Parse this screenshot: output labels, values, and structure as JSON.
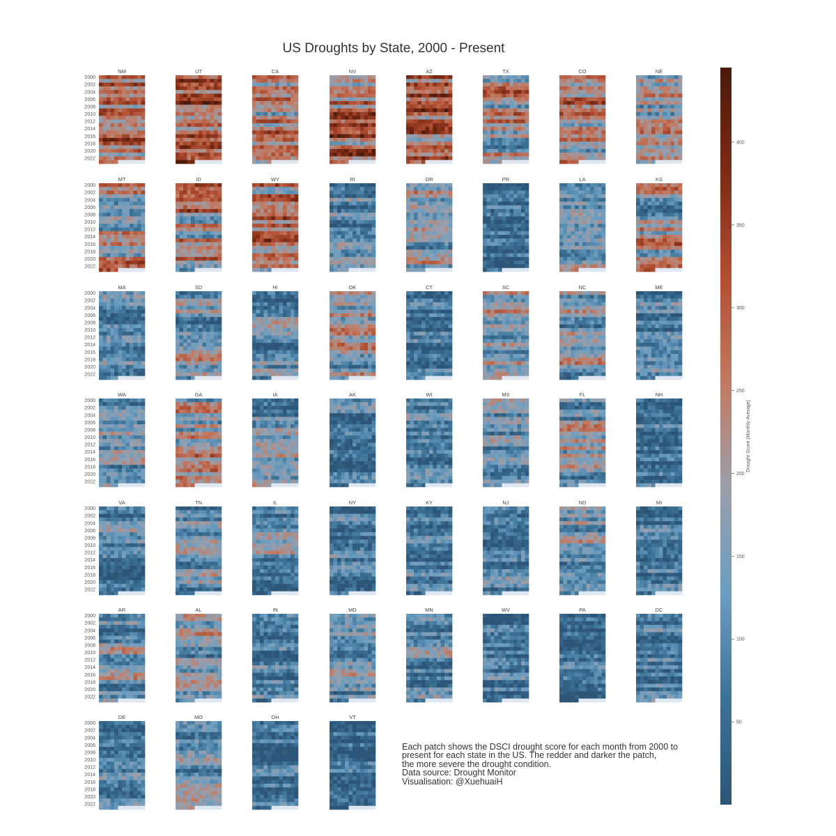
{
  "chart_data": {
    "type": "heatmap",
    "title": "US Droughts by State, 2000 - Present",
    "layout": "small multiples, one heatmap per state (rows = years, columns = months)",
    "row_labels": [
      "2000",
      "2002",
      "2004",
      "2006",
      "2008",
      "2010",
      "2012",
      "2014",
      "2016",
      "2018",
      "2020",
      "2022"
    ],
    "years": [
      2000,
      2023
    ],
    "months_per_row": 12,
    "states": [
      "NM",
      "UT",
      "CA",
      "NV",
      "AZ",
      "TX",
      "CO",
      "NE",
      "MT",
      "ID",
      "WY",
      "RI",
      "OR",
      "PR",
      "LA",
      "KS",
      "MA",
      "SD",
      "HI",
      "OK",
      "CT",
      "SC",
      "NC",
      "ME",
      "WA",
      "GA",
      "IA",
      "AK",
      "WI",
      "MS",
      "FL",
      "NH",
      "VA",
      "TN",
      "IL",
      "NY",
      "KY",
      "NJ",
      "ND",
      "MI",
      "AR",
      "AL",
      "IN",
      "MD",
      "MN",
      "WV",
      "PA",
      "DC",
      "DE",
      "MO",
      "OH",
      "VT"
    ],
    "approx_mean_level": [
      0.55,
      0.6,
      0.5,
      0.6,
      0.55,
      0.4,
      0.45,
      0.35,
      0.45,
      0.5,
      0.5,
      0.22,
      0.38,
      0.08,
      0.3,
      0.35,
      0.15,
      0.3,
      0.22,
      0.35,
      0.15,
      0.35,
      0.3,
      0.15,
      0.22,
      0.35,
      0.22,
      0.1,
      0.15,
      0.25,
      0.3,
      0.12,
      0.2,
      0.22,
      0.2,
      0.12,
      0.18,
      0.14,
      0.28,
      0.12,
      0.25,
      0.28,
      0.15,
      0.22,
      0.2,
      0.1,
      0.1,
      0.15,
      0.15,
      0.2,
      0.08,
      0.06
    ],
    "colorbar": {
      "label": "Drought Score (Monthly Average)",
      "range": [
        0,
        445
      ],
      "ticks": [
        50,
        100,
        150,
        200,
        250,
        300,
        350,
        400
      ],
      "colors": [
        "#2c5577",
        "#3d7297",
        "#6a9dc0",
        "#9a9fab",
        "#c27a62",
        "#b14f33",
        "#7e2a15",
        "#4a1a0a"
      ]
    }
  },
  "footnote": {
    "line1": "Each patch shows the DSCI drought score for each month from 2000 to",
    "line2": "present for each state in the US. The redder and darker the patch,",
    "line3": "the more severe the drought condition.",
    "line4": "Data source: Drought Monitor",
    "line5": "Visualisation: @XuehuaiH"
  }
}
